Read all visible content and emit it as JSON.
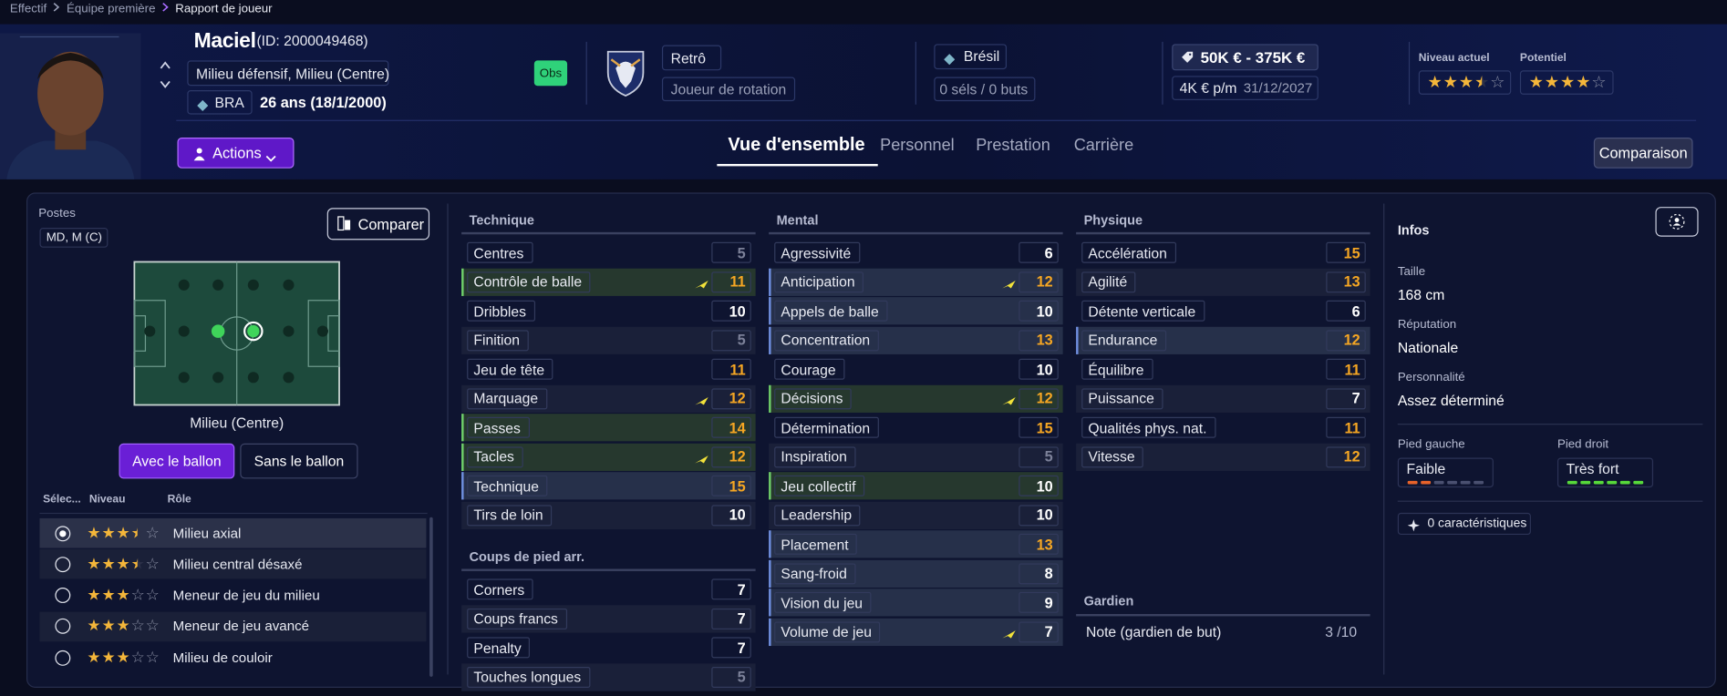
{
  "breadcrumb": [
    "Effectif",
    "Équipe première",
    "Rapport de joueur"
  ],
  "player": {
    "name": "Maciel",
    "id": "(ID: 2000049468)",
    "positions": "Milieu défensif, Milieu (Centre)",
    "nation_code": "BRA",
    "age": "26 ans (18/1/2000)",
    "badge": "Obs",
    "role_style": "Retrô",
    "squad_status": "Joueur de rotation",
    "nation": "Brésil",
    "caps": "0 séls / 0 buts",
    "value": "50K € - 375K €",
    "wage": "4K € p/m",
    "contract_end": "31/12/2027",
    "ability_label": "Niveau actuel",
    "ability_stars": 3.5,
    "potential_label": "Potentiel",
    "potential_stars": 4
  },
  "actions": "Actions",
  "tabs": {
    "items": [
      "Vue d'ensemble",
      "Personnel",
      "Prestation",
      "Carrière"
    ],
    "active": 0
  },
  "compare": "Comparaison",
  "positions": {
    "label": "Postes",
    "value": "MD, M (C)",
    "compare_button": "Comparer",
    "pitch_label": "Milieu (Centre)",
    "toggle": [
      "Avec le ballon",
      "Sans le ballon"
    ],
    "toggle_active": 0,
    "columns": [
      "Sélec...",
      "Niveau",
      "Rôle"
    ],
    "roles": [
      {
        "name": "Milieu axial",
        "stars": 3.5,
        "selected": true
      },
      {
        "name": "Milieu central désaxé",
        "stars": 3.5
      },
      {
        "name": "Meneur de jeu du milieu",
        "stars": 3
      },
      {
        "name": "Meneur de jeu avancé",
        "stars": 3
      },
      {
        "name": "Milieu de couloir",
        "stars": 3
      }
    ]
  },
  "attributes": [
    {
      "title": "Technique",
      "items": [
        {
          "name": "Centres",
          "value": 5
        },
        {
          "name": "Contrôle de balle",
          "value": 11,
          "highlight": "green",
          "trend": "up"
        },
        {
          "name": "Dribbles",
          "value": 10
        },
        {
          "name": "Finition",
          "value": 5
        },
        {
          "name": "Jeu de tête",
          "value": 11
        },
        {
          "name": "Marquage",
          "value": 12,
          "trend": "up"
        },
        {
          "name": "Passes",
          "value": 14,
          "highlight": "green"
        },
        {
          "name": "Tacles",
          "value": 12,
          "highlight": "green",
          "trend": "up"
        },
        {
          "name": "Technique",
          "value": 15,
          "highlight": "blue"
        },
        {
          "name": "Tirs de loin",
          "value": 10
        }
      ]
    },
    {
      "title": "Coups de pied arr.",
      "items": [
        {
          "name": "Corners",
          "value": 7
        },
        {
          "name": "Coups francs",
          "value": 7
        },
        {
          "name": "Penalty",
          "value": 7
        },
        {
          "name": "Touches longues",
          "value": 5
        }
      ]
    },
    {
      "title": "Mental",
      "items": [
        {
          "name": "Agressivité",
          "value": 6
        },
        {
          "name": "Anticipation",
          "value": 12,
          "highlight": "blue",
          "trend": "up"
        },
        {
          "name": "Appels de balle",
          "value": 10,
          "highlight": "blue"
        },
        {
          "name": "Concentration",
          "value": 13,
          "highlight": "blue"
        },
        {
          "name": "Courage",
          "value": 10
        },
        {
          "name": "Décisions",
          "value": 12,
          "highlight": "green",
          "trend": "up"
        },
        {
          "name": "Détermination",
          "value": 15
        },
        {
          "name": "Inspiration",
          "value": 5
        },
        {
          "name": "Jeu collectif",
          "value": 10,
          "highlight": "green"
        },
        {
          "name": "Leadership",
          "value": 10
        },
        {
          "name": "Placement",
          "value": 13,
          "highlight": "blue"
        },
        {
          "name": "Sang-froid",
          "value": 8,
          "highlight": "blue"
        },
        {
          "name": "Vision du jeu",
          "value": 9,
          "highlight": "blue"
        },
        {
          "name": "Volume de jeu",
          "value": 7,
          "highlight": "blue",
          "trend": "up"
        }
      ]
    },
    {
      "title": "Physique",
      "items": [
        {
          "name": "Accélération",
          "value": 15
        },
        {
          "name": "Agilité",
          "value": 13
        },
        {
          "name": "Détente verticale",
          "value": 6
        },
        {
          "name": "Endurance",
          "value": 12,
          "highlight": "blue"
        },
        {
          "name": "Équilibre",
          "value": 11
        },
        {
          "name": "Puissance",
          "value": 7
        },
        {
          "name": "Qualités phys. nat.",
          "value": 11
        },
        {
          "name": "Vitesse",
          "value": 12
        }
      ]
    }
  ],
  "goalkeeper": {
    "title": "Gardien",
    "label": "Note (gardien de but)",
    "value": "3 /10"
  },
  "infos": {
    "title": "Infos",
    "fields": [
      {
        "label": "Taille",
        "value": "168 cm"
      },
      {
        "label": "Réputation",
        "value": "Nationale"
      },
      {
        "label": "Personnalité",
        "value": "Assez déterminé"
      }
    ],
    "left_foot": {
      "label": "Pied gauche",
      "value": "Faible",
      "level": 2
    },
    "right_foot": {
      "label": "Pied droit",
      "value": "Très fort",
      "level": 6
    },
    "traits": "0 caractéristiques"
  }
}
